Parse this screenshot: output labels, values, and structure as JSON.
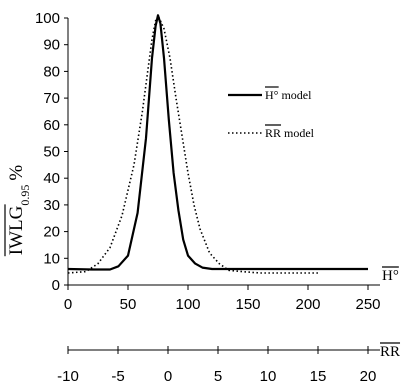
{
  "chart_data": {
    "type": "line",
    "ylabel": "IWLG",
    "ylabel_subscript": "0.95",
    "ylabel_unit": "%",
    "ylim": [
      0,
      100
    ],
    "yticks": [
      0,
      10,
      20,
      30,
      40,
      50,
      60,
      70,
      80,
      90,
      100
    ],
    "axes": [
      {
        "name": "H°",
        "lim": [
          0,
          250
        ],
        "ticks": [
          0,
          50,
          100,
          150,
          200,
          250
        ]
      },
      {
        "name": "RR",
        "lim": [
          -10,
          20
        ],
        "ticks": [
          -10,
          -5,
          0,
          5,
          10,
          15,
          20
        ]
      }
    ],
    "series": [
      {
        "name": "H° model",
        "style": "solid",
        "x_axis": "H°",
        "x": [
          0,
          20,
          35,
          42,
          50,
          58,
          65,
          70,
          73,
          75,
          77,
          80,
          84,
          88,
          92,
          96,
          100,
          106,
          112,
          120,
          140,
          160,
          200,
          250
        ],
        "y": [
          6,
          5.8,
          5.8,
          7,
          11,
          27,
          55,
          85,
          97,
          101,
          98,
          85,
          62,
          42,
          28,
          17,
          11,
          8,
          6.5,
          6,
          6,
          6,
          6,
          6
        ]
      },
      {
        "name": "RR model",
        "style": "dotted",
        "x_axis": "H°",
        "x": [
          0,
          15,
          25,
          35,
          45,
          55,
          62,
          67,
          70,
          73,
          76,
          80,
          85,
          90,
          95,
          100,
          105,
          110,
          118,
          126,
          134,
          145,
          160,
          180,
          210
        ],
        "y": [
          4.5,
          5,
          8,
          14,
          26,
          45,
          65,
          82,
          92,
          99,
          100,
          96,
          85,
          70,
          56,
          42,
          30,
          21,
          12,
          8,
          5.5,
          5,
          4.5,
          4.5,
          4.5
        ]
      }
    ],
    "legend_placement": "right-middle",
    "grid": false
  }
}
